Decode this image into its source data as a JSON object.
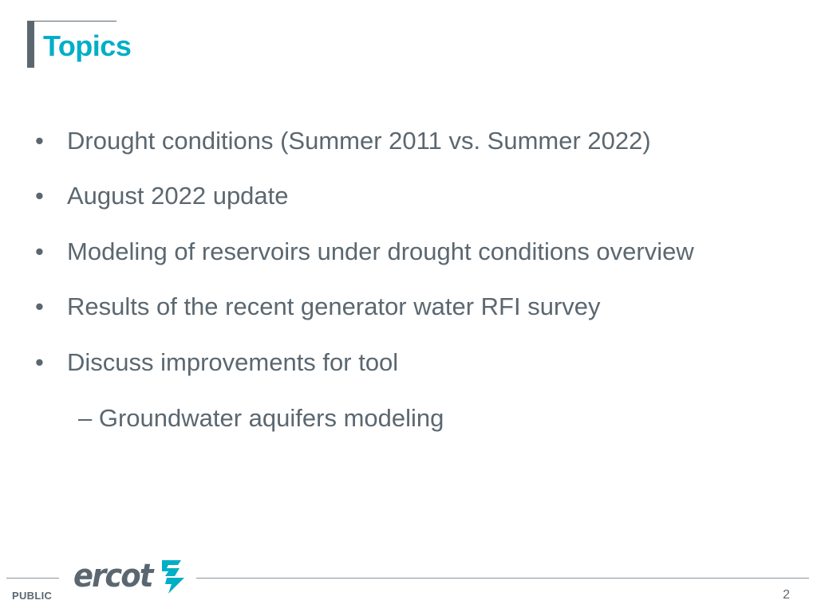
{
  "slide": {
    "title": "Topics",
    "bullets": [
      {
        "marker": "•",
        "text": "Drought conditions (Summer 2011 vs. Summer 2022)"
      },
      {
        "marker": "•",
        "text": "August 2022 update"
      },
      {
        "marker": "•",
        "text": "Modeling of reservoirs under drought conditions overview"
      },
      {
        "marker": "•",
        "text": "Results of the recent generator water RFI survey"
      },
      {
        "marker": "•",
        "text": "Discuss improvements for tool"
      }
    ],
    "sub_bullets": [
      {
        "text": "– Groundwater aquifers modeling"
      }
    ]
  },
  "footer": {
    "classification": "PUBLIC",
    "logo_text": "ercot",
    "logo_icon": "ercot-bolt-icon",
    "page_number": "2"
  },
  "colors": {
    "title": "#00aec7",
    "body_text": "#5b6770",
    "accent_bar": "#5b6770",
    "logo_mark": "#00aec7"
  }
}
